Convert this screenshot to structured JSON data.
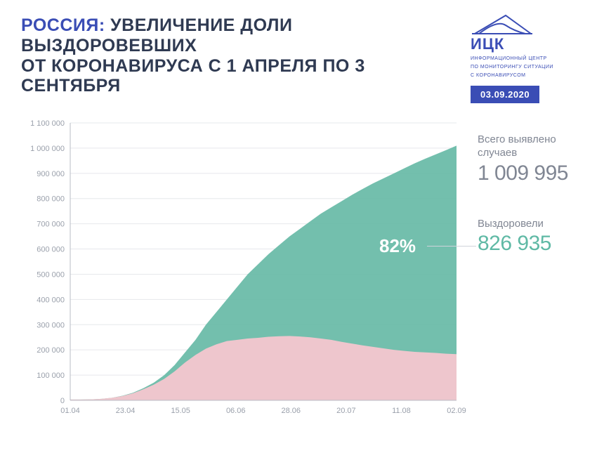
{
  "header": {
    "country": "РОССИЯ:",
    "rest_line1": " УВЕЛИЧЕНИЕ ДОЛИ ВЫЗДОРОВЕВШИХ",
    "line2": "ОТ КОРОНАВИРУСА С 1 АПРЕЛЯ ПО 3 СЕНТЯБРЯ",
    "title_fontsize": 25,
    "country_color": "#3a4db5",
    "rest_color": "#2f3a52"
  },
  "logo": {
    "abbr": "ИЦК",
    "sub1": "ИНФОРМАЦИОННЫЙ ЦЕНТР",
    "sub2": "ПО МОНИТОРИНГУ СИТУАЦИИ",
    "sub3": "С КОРОНАВИРУСОМ",
    "color": "#3a4db5"
  },
  "date_badge": "03.09.2020",
  "chart": {
    "type": "area",
    "background_color": "#ffffff",
    "grid_color": "#e6e8ec",
    "axis_color": "#b8bcc5",
    "tick_label_color": "#9aa0ab",
    "tick_fontsize": 11,
    "ylim": [
      0,
      1100000
    ],
    "ytick_step": 100000,
    "y_ticks": [
      "0",
      "100 000",
      "200 000",
      "300 000",
      "400 000",
      "500 000",
      "600 000",
      "700 000",
      "800 000",
      "900 000",
      "1 000 000",
      "1 100 000"
    ],
    "x_ticks": [
      "01.04",
      "23.04",
      "15.05",
      "06.06",
      "28.06",
      "20.07",
      "11.08",
      "02.09"
    ],
    "series": {
      "total": {
        "color": "#6cbca9",
        "values": [
          3000,
          3000,
          4000,
          6000,
          10000,
          18000,
          30000,
          48000,
          70000,
          100000,
          140000,
          190000,
          240000,
          300000,
          350000,
          400000,
          450000,
          500000,
          540000,
          580000,
          615000,
          650000,
          680000,
          710000,
          740000,
          765000,
          790000,
          815000,
          838000,
          860000,
          880000,
          900000,
          920000,
          940000,
          958000,
          975000,
          992000,
          1009995
        ]
      },
      "active": {
        "label": "active (pink lower layer)",
        "color": "#f4c6cf",
        "values": [
          3000,
          3000,
          4000,
          6000,
          10000,
          17000,
          28000,
          44000,
          62000,
          85000,
          115000,
          150000,
          180000,
          205000,
          222000,
          235000,
          240000,
          245000,
          248000,
          252000,
          254000,
          255000,
          253000,
          250000,
          245000,
          240000,
          232000,
          225000,
          218000,
          212000,
          206000,
          200000,
          196000,
          192000,
          190000,
          188000,
          185000,
          183060
        ]
      }
    },
    "callout": {
      "text": "82%",
      "fontsize": 26,
      "color": "#ffffff",
      "line_color": "#cfd3da"
    }
  },
  "stats": {
    "total_label": "Всего выявлено случаев",
    "total_value": "1 009 995",
    "total_color": "#808693",
    "recovered_label": "Выздоровели",
    "recovered_value": "826 935",
    "recovered_color": "#5fb9a5",
    "label_fontsize": 15,
    "value_fontsize": 30
  }
}
